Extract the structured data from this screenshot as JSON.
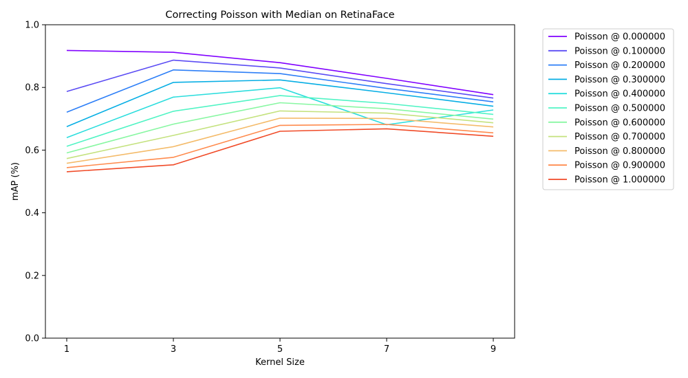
{
  "chart_data": {
    "type": "line",
    "title": "Correcting Poisson with Median on RetinaFace",
    "xlabel": "Kernel Size",
    "ylabel": "mAP (%)",
    "x": [
      1,
      3,
      5,
      7,
      9
    ],
    "x_ticks": [
      "1",
      "3",
      "5",
      "7",
      "9"
    ],
    "y_ticks": [
      "0.0",
      "0.2",
      "0.4",
      "0.6",
      "0.8",
      "1.0"
    ],
    "ylim": [
      0,
      1
    ],
    "xlim": [
      0.6,
      9.4
    ],
    "grid": false,
    "legend_position": "outside-upper-right",
    "series": [
      {
        "name": "Poisson @ 0.000000",
        "color": "#8000ff",
        "values": [
          0.918,
          0.912,
          0.879,
          0.829,
          0.777
        ]
      },
      {
        "name": "Poisson @ 0.100000",
        "color": "#5a4bf4",
        "values": [
          0.787,
          0.887,
          0.862,
          0.812,
          0.766
        ]
      },
      {
        "name": "Poisson @ 0.200000",
        "color": "#2c7ef7",
        "values": [
          0.721,
          0.856,
          0.844,
          0.797,
          0.754
        ]
      },
      {
        "name": "Poisson @ 0.300000",
        "color": "#06aee4",
        "values": [
          0.675,
          0.816,
          0.824,
          0.783,
          0.74
        ]
      },
      {
        "name": "Poisson @ 0.400000",
        "color": "#2adddd",
        "values": [
          0.64,
          0.769,
          0.799,
          0.681,
          0.728
        ]
      },
      {
        "name": "Poisson @ 0.500000",
        "color": "#50f4c4",
        "values": [
          0.612,
          0.724,
          0.774,
          0.749,
          0.714
        ]
      },
      {
        "name": "Poisson @ 0.600000",
        "color": "#88f7a2",
        "values": [
          0.591,
          0.683,
          0.751,
          0.732,
          0.699
        ]
      },
      {
        "name": "Poisson @ 0.700000",
        "color": "#c4e27e",
        "values": [
          0.573,
          0.647,
          0.725,
          0.718,
          0.687
        ]
      },
      {
        "name": "Poisson @ 0.800000",
        "color": "#f4bb6a",
        "values": [
          0.558,
          0.611,
          0.702,
          0.701,
          0.674
        ]
      },
      {
        "name": "Poisson @ 0.900000",
        "color": "#ff8a4c",
        "values": [
          0.544,
          0.577,
          0.679,
          0.682,
          0.655
        ]
      },
      {
        "name": "Poisson @ 1.000000",
        "color": "#f04a27",
        "values": [
          0.531,
          0.553,
          0.66,
          0.668,
          0.644
        ]
      }
    ]
  }
}
